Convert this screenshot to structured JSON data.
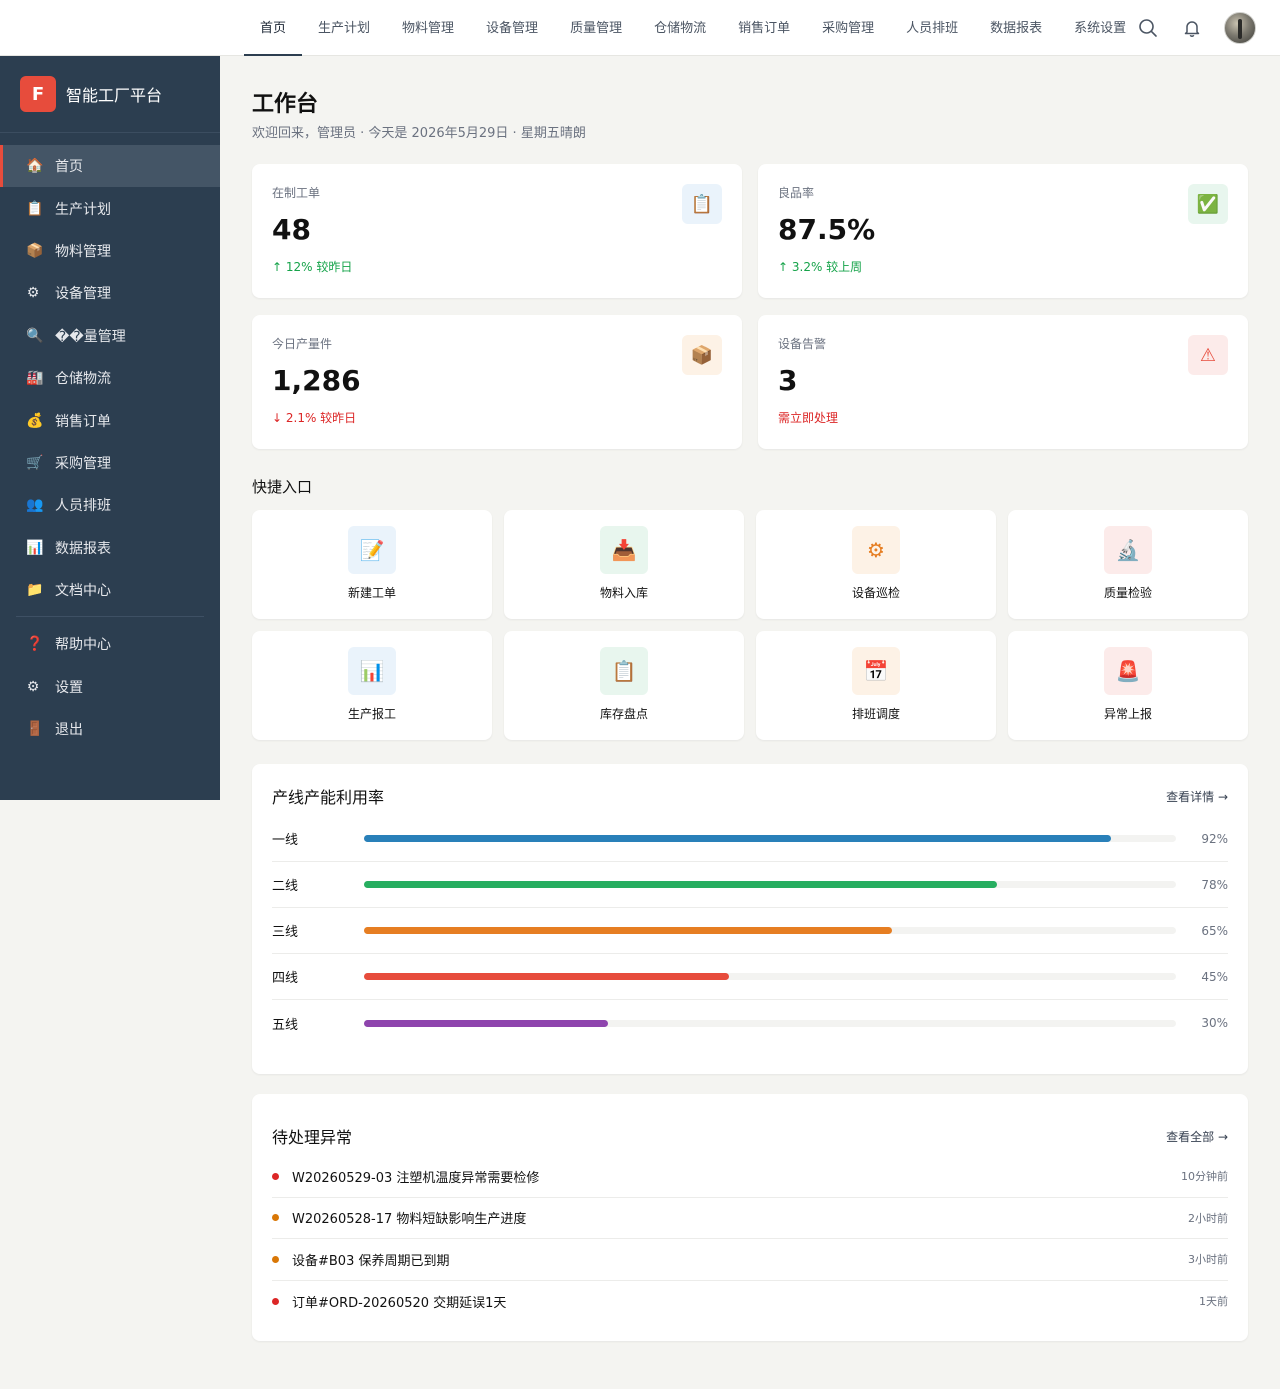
{
  "topnav": {
    "tabs": [
      {
        "label": "首页",
        "active": true
      },
      {
        "label": "生产计划"
      },
      {
        "label": "物料管理"
      },
      {
        "label": "设备管理"
      },
      {
        "label": "质量管理"
      },
      {
        "label": "仓储物流"
      },
      {
        "label": "销售订单"
      },
      {
        "label": "采购管理"
      },
      {
        "label": "人员排班"
      },
      {
        "label": "数据报表"
      },
      {
        "label": "系统设置"
      }
    ]
  },
  "brand": {
    "logo_letter": "F",
    "name": "智能工厂平台"
  },
  "sidebar": {
    "items": [
      {
        "icon": "🏠",
        "icon_name": "home-icon",
        "label": "首页",
        "active": true
      },
      {
        "icon": "📋",
        "icon_name": "clipboard-icon",
        "label": "生产计划"
      },
      {
        "icon": "📦",
        "icon_name": "box-icon",
        "label": "物料管理"
      },
      {
        "icon": "⚙",
        "icon_name": "gear-icon",
        "label": "设备管理"
      },
      {
        "icon": "🔍",
        "icon_name": "inspect-icon",
        "label": "��量管理"
      },
      {
        "icon": "🏭",
        "icon_name": "warehouse-icon",
        "label": "仓储物流"
      },
      {
        "icon": "💰",
        "icon_name": "sales-icon",
        "label": "销售订单"
      },
      {
        "icon": "🛒",
        "icon_name": "cart-icon",
        "label": "采购管理"
      },
      {
        "icon": "👥",
        "icon_name": "users-icon",
        "label": "人员排班"
      },
      {
        "icon": "📊",
        "icon_name": "chart-icon",
        "label": "数据报表"
      },
      {
        "icon": "📁",
        "icon_name": "folder-icon",
        "label": "文档中心"
      }
    ],
    "bottom_items": [
      {
        "icon": "❓",
        "icon_name": "help-icon",
        "label": "帮助中心"
      },
      {
        "icon": "⚙",
        "icon_name": "settings-icon",
        "label": "设置"
      },
      {
        "icon": "🚪",
        "icon_name": "logout-icon",
        "label": "退出"
      }
    ]
  },
  "page": {
    "title": "工作台",
    "subtitle": "欢迎回来，管理员 · 今天是 2026年5月29日 · 星期五晴朗"
  },
  "stats": [
    {
      "label": "在制工单",
      "value": "48",
      "change": "↑ 12% 较昨日",
      "change_color": "#16a34a",
      "icon": "📋",
      "icon_name": "work-order-icon",
      "icon_bg": "#eaf3fb",
      "icon_color": "#2980b9"
    },
    {
      "label": "良品率",
      "value": "87.5%",
      "change": "↑ 3.2% 较上周",
      "change_color": "#16a34a",
      "icon": "✅",
      "icon_name": "check-icon",
      "icon_bg": "#e8f6ee",
      "icon_color": "#27ae60"
    },
    {
      "label": "今日产量件",
      "value": "1,286",
      "change": "↓ 2.1% 较昨日",
      "change_color": "#dc2626",
      "icon": "📦",
      "icon_name": "output-icon",
      "icon_bg": "#fdf2e6",
      "icon_color": "#e67e22"
    },
    {
      "label": "设备告警",
      "value": "3",
      "change": "需立即处理",
      "change_color": "#dc2626",
      "icon": "⚠",
      "icon_name": "warning-icon",
      "icon_bg": "#fcebea",
      "icon_color": "#e74c3c"
    }
  ],
  "quick_title": "快捷入口",
  "quick": [
    {
      "label": "新建工单",
      "icon": "📝",
      "icon_name": "new-order-icon",
      "bg": "#eaf3fb",
      "color": "#2980b9"
    },
    {
      "label": "物料入库",
      "icon": "📥",
      "icon_name": "inbound-icon",
      "bg": "#e8f6ee",
      "color": "#27ae60"
    },
    {
      "label": "设备巡检",
      "icon": "⚙",
      "icon_name": "gear-icon",
      "bg": "#fdf2e6",
      "color": "#e67e22"
    },
    {
      "label": "质量检验",
      "icon": "🔬",
      "icon_name": "inspect-icon",
      "bg": "#fcebea",
      "color": "#e74c3c"
    },
    {
      "label": "生产报工",
      "icon": "📊",
      "icon_name": "report-icon",
      "bg": "#eaf3fb",
      "color": "#2980b9"
    },
    {
      "label": "库存盘点",
      "icon": "📋",
      "icon_name": "stocktake-icon",
      "bg": "#e8f6ee",
      "color": "#27ae60"
    },
    {
      "label": "排班调度",
      "icon": "📅",
      "icon_name": "calendar-icon",
      "bg": "#fdf2e6",
      "color": "#e67e22"
    },
    {
      "label": "异常上报",
      "icon": "🚨",
      "icon_name": "alarm-icon",
      "bg": "#fcebea",
      "color": "#e74c3c"
    }
  ],
  "progress": {
    "title": "产线产能利用率",
    "link": "查看详情 →",
    "rows": [
      {
        "label": "一线",
        "pct": 0.92,
        "pct_label": "92%",
        "color": "#2980b9"
      },
      {
        "label": "二线",
        "pct": 0.78,
        "pct_label": "78%",
        "color": "#27ae60"
      },
      {
        "label": "三线",
        "pct": 0.65,
        "pct_label": "65%",
        "color": "#e67e22"
      },
      {
        "label": "四线",
        "pct": 0.45,
        "pct_label": "45%",
        "color": "#e74c3c"
      },
      {
        "label": "五线",
        "pct": 0.3,
        "pct_label": "30%",
        "color": "#8e44ad"
      }
    ]
  },
  "alerts": {
    "title": "待处理异常",
    "link": "查看全部 →",
    "rows": [
      {
        "text": "W20260529-03 注塑机温度异常需要检修",
        "time": "10分钟前",
        "color": "#dc2626"
      },
      {
        "text": "W20260528-17 物料短缺影响生产进度",
        "time": "2小时前",
        "color": "#d97706"
      },
      {
        "text": "设备#B03 保养周期已到期",
        "time": "3小时前",
        "color": "#d97706"
      },
      {
        "text": "订单#ORD-20260520 交期延误1天",
        "time": "1天前",
        "color": "#dc2626"
      }
    ]
  }
}
